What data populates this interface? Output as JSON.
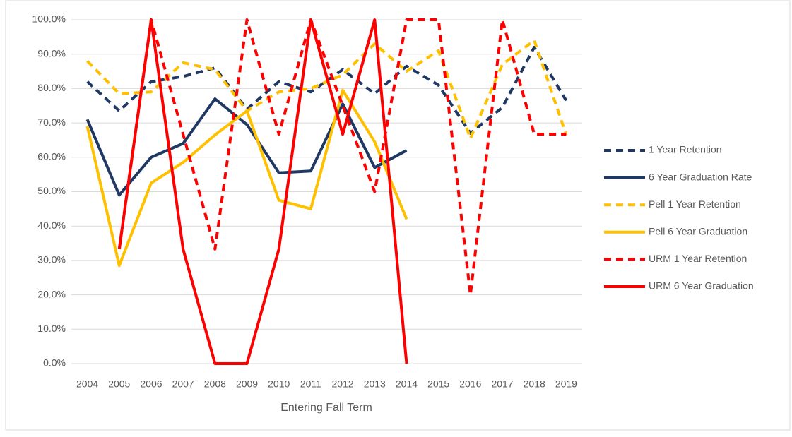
{
  "chart_data": {
    "type": "line",
    "x_label": "Entering Fall Term",
    "categories": [
      "2004",
      "2005",
      "2006",
      "2007",
      "2008",
      "2009",
      "2010",
      "2011",
      "2012",
      "2013",
      "2014",
      "2015",
      "2016",
      "2017",
      "2018",
      "2019"
    ],
    "ylim": [
      0,
      100
    ],
    "yticks": [
      {
        "value": 0,
        "label": "0.0%"
      },
      {
        "value": 10,
        "label": "10.0%"
      },
      {
        "value": 20,
        "label": "20.0%"
      },
      {
        "value": 30,
        "label": "30.0%"
      },
      {
        "value": 40,
        "label": "40.0%"
      },
      {
        "value": 50,
        "label": "50.0%"
      },
      {
        "value": 60,
        "label": "60.0%"
      },
      {
        "value": 70,
        "label": "70.0%"
      },
      {
        "value": 80,
        "label": "80.0%"
      },
      {
        "value": 90,
        "label": "90.0%"
      },
      {
        "value": 100,
        "label": "100.0%"
      }
    ],
    "grid": true,
    "legend": "right",
    "series": [
      {
        "name": "1 Year Retention",
        "color": "#203864",
        "dashed": true,
        "values": [
          82,
          73.5,
          82,
          83.5,
          86,
          74,
          82,
          79,
          85.5,
          78.5,
          86.5,
          81,
          67,
          74.5,
          92,
          76.5
        ]
      },
      {
        "name": "6 Year Graduation Rate",
        "color": "#203864",
        "dashed": false,
        "values": [
          71,
          49,
          60,
          64,
          77,
          69.5,
          55.5,
          56,
          75.5,
          57,
          62,
          null,
          null,
          null,
          null,
          null
        ]
      },
      {
        "name": "Pell 1 Year Retention",
        "color": "#ffc000",
        "dashed": true,
        "values": [
          88,
          78.5,
          79,
          87.5,
          85.5,
          73.5,
          79,
          80,
          84,
          93,
          85,
          91,
          65.5,
          87,
          94,
          66.5
        ]
      },
      {
        "name": "Pell 6 Year Graduation",
        "color": "#ffc000",
        "dashed": false,
        "values": [
          69,
          28.5,
          52.5,
          58.5,
          66.5,
          73.5,
          47.5,
          45,
          79.5,
          64.5,
          42,
          null,
          null,
          null,
          null,
          null
        ]
      },
      {
        "name": "URM 1 Year Retention",
        "color": "#ff0000",
        "dashed": true,
        "values": [
          null,
          33.3,
          100,
          66.7,
          33.3,
          100,
          66.7,
          100,
          75,
          50,
          100,
          100,
          20,
          100,
          66.7,
          66.7
        ]
      },
      {
        "name": "URM 6 Year Graduation",
        "color": "#ff0000",
        "dashed": false,
        "values": [
          null,
          33.3,
          100,
          33.3,
          0,
          0,
          33.3,
          100,
          66.7,
          100,
          0,
          null,
          null,
          null,
          null,
          null
        ]
      }
    ]
  }
}
